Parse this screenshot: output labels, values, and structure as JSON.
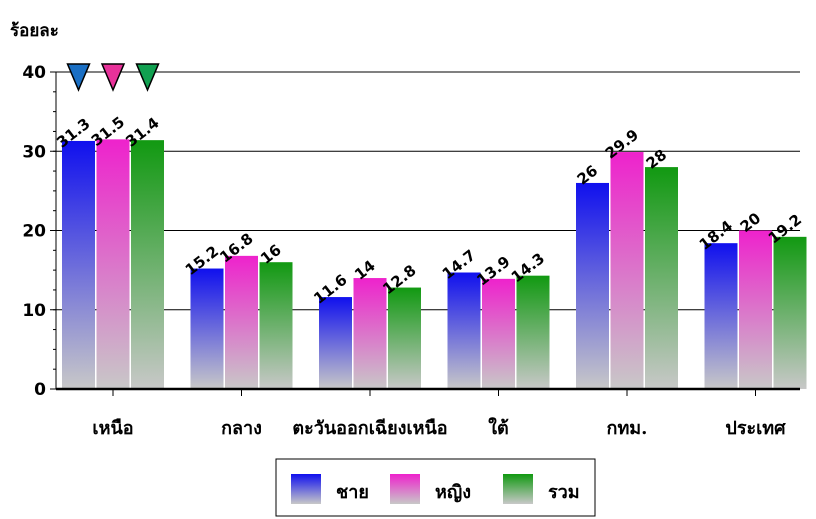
{
  "chart_data": {
    "type": "bar",
    "ylabel": "ร้อยละ",
    "ylim": [
      0,
      40
    ],
    "yticks": [
      0,
      10,
      20,
      30,
      40
    ],
    "grid": true,
    "legend_position": "bottom",
    "categories": [
      "เหนือ",
      "กลาง",
      "ตะวันออกเฉียงเหนือ",
      "ใต้",
      "กทม.",
      "ประเทศ"
    ],
    "series": [
      {
        "name": "ชาย",
        "values": [
          31.3,
          15.2,
          11.6,
          14.7,
          26,
          18.4
        ],
        "color": "#1010ee"
      },
      {
        "name": "หญิง",
        "values": [
          31.5,
          16.8,
          14,
          13.9,
          29.9,
          20
        ],
        "color": "#ee22cc"
      },
      {
        "name": "รวม",
        "values": [
          31.4,
          16,
          12.8,
          14.3,
          28,
          19.2
        ],
        "color": "#119911"
      }
    ],
    "data_label_strings": [
      [
        "31.3",
        "15.2",
        "11.6",
        "14.7",
        "26",
        "18.4"
      ],
      [
        "31.5",
        "16.8",
        "14",
        "13.9",
        "29.9",
        "20"
      ],
      [
        "31.4",
        "16",
        "12.8",
        "14.3",
        "28",
        "19.2"
      ]
    ],
    "markers": {
      "shape": "down-triangle",
      "colors": [
        "#1a6fc4",
        "#e8329a",
        "#11a050"
      ]
    }
  }
}
